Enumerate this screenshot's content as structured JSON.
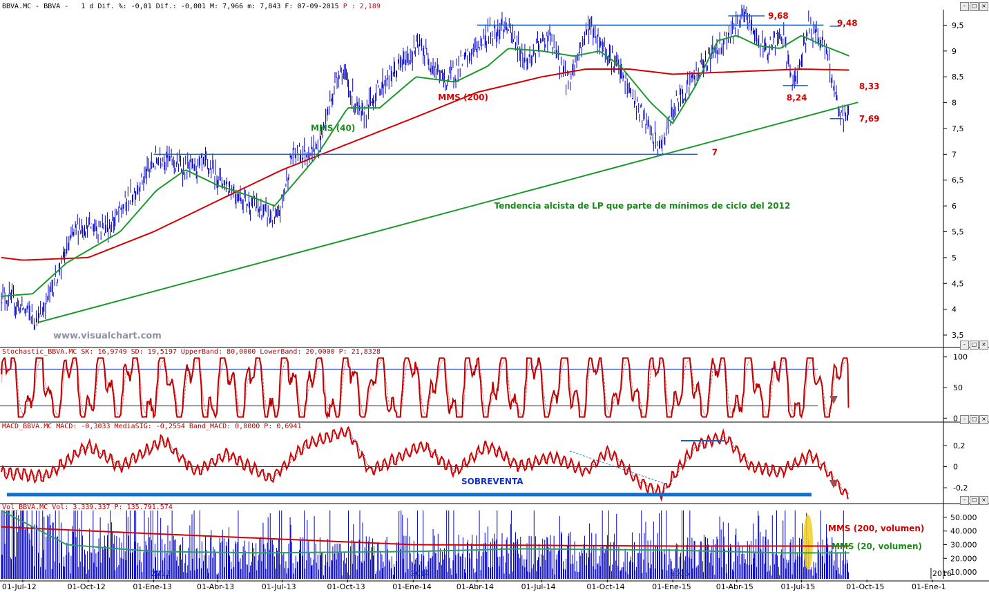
{
  "headers": {
    "price": {
      "text": "BBVA.MC - BBVA -   1 d Dif. %: -0,01 Dif.: -0,001 M: 7,966 m: 7,843 F: 07-09-2015 ",
      "p": "P : 2,189"
    },
    "stoch": {
      "text": "Stochastic_BBVA.MC SK: 16,9749 SD: 19,5197 UpperBand: 80,0000 LowerBand: 20,0000 P: 21,8328"
    },
    "macd": {
      "text": "MACD_BBVA.MC MACD: -0,3033 MediaSIG: -0,2554 Band_MACD: 0,0000 P: 0,6941"
    },
    "vol": {
      "text": "Vol_BBVA.MC Vol: 3.339.337 P: 135.791.574"
    }
  },
  "window_buttons": [
    "-",
    "□",
    "×"
  ],
  "x_axis_labels": [
    "01-Jul-12",
    "01-Oct-12",
    "01-Ene-13",
    "01-Abr-13",
    "01-Jul-13",
    "01-Oct-13",
    "01-Ene-14",
    "01-Abr-14",
    "01-Jul-14",
    "01-Oct-14",
    "01-Ene-15",
    "01-Abr-15",
    "01-Jul-15",
    "01-Oct-15",
    "01-Ene-1"
  ],
  "x_axis_x_values": [
    "2012-07-01",
    "2012-10-01",
    "2013-01-01",
    "2013-04-01",
    "2013-07-01",
    "2013-10-01",
    "2014-01-01",
    "2014-04-01",
    "2014-07-01",
    "2014-10-01",
    "2015-01-01",
    "2015-04-01",
    "2015-07-01",
    "2015-10-01",
    "2016-01-01"
  ],
  "year_marks": [
    "2013",
    "2014",
    "2015",
    "2016"
  ],
  "watermark": "www.visualchart.com",
  "colors": {
    "price": "#0000cc",
    "mms40": "#1a9a2a",
    "mms200": "#d40000",
    "hline": "#1060d0",
    "trend": "#1a9a2a",
    "annot_red": "#d40000",
    "annot_green": "#1a8a1a",
    "stoch": "#c00000",
    "macd": "#d40000",
    "vol": "#0000cc"
  },
  "chart_data": [
    {
      "type": "line",
      "panel": "price",
      "y_ticks": [
        "9,5",
        "9",
        "8,5",
        "8",
        "7,5",
        "7",
        "6,5",
        "6",
        "5,5",
        "5",
        "4,5",
        "4",
        "3,5"
      ],
      "ylim": [
        3.3,
        9.8
      ],
      "series": [
        {
          "name": "MMS (40)",
          "x": [
            "2012-06-01",
            "2012-07-15",
            "2012-09-01",
            "2012-11-15",
            "2013-01-05",
            "2013-02-15",
            "2013-04-01",
            "2013-05-15",
            "2013-06-20",
            "2013-08-15",
            "2013-10-01",
            "2013-11-15",
            "2014-01-05",
            "2014-03-01",
            "2014-04-15",
            "2014-05-15",
            "2014-07-01",
            "2014-08-15",
            "2014-09-20",
            "2014-10-20",
            "2014-12-01",
            "2015-01-01",
            "2015-02-01",
            "2015-03-05",
            "2015-04-01",
            "2015-05-01",
            "2015-06-01",
            "2015-07-01",
            "2015-08-01",
            "2015-09-07"
          ],
          "y": [
            4.25,
            4.3,
            4.9,
            5.5,
            6.3,
            6.7,
            6.4,
            6.2,
            6.0,
            6.9,
            7.9,
            7.9,
            8.5,
            8.4,
            8.7,
            9.05,
            9.0,
            8.9,
            9.0,
            8.7,
            8.0,
            7.6,
            8.3,
            9.2,
            9.3,
            9.1,
            9.05,
            9.3,
            9.1,
            8.9
          ]
        },
        {
          "name": "MMS (200)",
          "x": [
            "2012-06-01",
            "2012-07-01",
            "2012-10-01",
            "2013-01-01",
            "2013-04-01",
            "2013-07-01",
            "2013-10-01",
            "2014-01-01",
            "2014-04-01",
            "2014-07-01",
            "2014-09-01",
            "2014-11-01",
            "2015-01-01",
            "2015-04-01",
            "2015-07-01",
            "2015-09-07"
          ],
          "y": [
            5.0,
            4.95,
            5.0,
            5.5,
            6.1,
            6.7,
            7.2,
            7.7,
            8.2,
            8.5,
            8.65,
            8.65,
            8.55,
            8.6,
            8.65,
            8.63
          ]
        },
        {
          "name": "price",
          "x": [
            "2012-06-01",
            "2012-07-24",
            "2012-09-15",
            "2012-11-01",
            "2013-01-10",
            "2013-02-15",
            "2013-03-15",
            "2013-05-01",
            "2013-06-24",
            "2013-07-15",
            "2013-08-20",
            "2013-09-20",
            "2013-10-20",
            "2013-11-15",
            "2014-01-10",
            "2014-02-15",
            "2014-04-15",
            "2014-05-10",
            "2014-06-10",
            "2014-07-10",
            "2014-08-07",
            "2014-09-05",
            "2014-10-15",
            "2014-12-01",
            "2014-12-16",
            "2015-01-05",
            "2015-02-15",
            "2015-04-13",
            "2015-05-10",
            "2015-06-05",
            "2015-06-20",
            "2015-07-10",
            "2015-08-01",
            "2015-08-15",
            "2015-08-24",
            "2015-09-07"
          ],
          "y": [
            4.3,
            3.8,
            5.6,
            5.6,
            7.0,
            6.7,
            6.8,
            6.2,
            5.7,
            7.0,
            7.1,
            8.7,
            7.7,
            8.3,
            9.1,
            8.4,
            9.3,
            9.5,
            8.8,
            9.3,
            8.4,
            9.5,
            8.7,
            7.4,
            7.1,
            8.0,
            8.8,
            9.68,
            9.0,
            9.3,
            8.24,
            9.48,
            9.2,
            8.33,
            7.69,
            7.8
          ]
        }
      ],
      "levels": [
        {
          "value": 9.5,
          "label": ""
        },
        {
          "value": 7.0,
          "label": "7"
        },
        {
          "value": 9.68,
          "label": "9,68"
        },
        {
          "value": 9.48,
          "label": "9,48"
        },
        {
          "value": 8.33,
          "label": "8,33"
        },
        {
          "value": 8.24,
          "label": "8,24"
        },
        {
          "value": 7.69,
          "label": "7,69"
        }
      ],
      "trendline": {
        "x": [
          "2012-07-24",
          "2015-09-07"
        ],
        "y": [
          3.75,
          7.98
        ]
      },
      "annotations": [
        {
          "text": "MMS (40)",
          "color": "green"
        },
        {
          "text": "MMS (200)",
          "color": "red"
        },
        {
          "text": "Tendencia alcista de LP que parte de mínimos de ciclo del 2012",
          "color": "green"
        }
      ]
    },
    {
      "type": "line",
      "panel": "stochastic",
      "y_ticks": [
        "100",
        "50",
        "0"
      ],
      "ylim": [
        0,
        100
      ],
      "bands": [
        80,
        20
      ],
      "series": [
        {
          "name": "SK",
          "x": [
            "2015-09-07"
          ],
          "y": [
            16.9749
          ]
        },
        {
          "name": "SD",
          "x": [
            "2015-09-07"
          ],
          "y": [
            19.5197
          ]
        }
      ]
    },
    {
      "type": "line",
      "panel": "macd",
      "y_ticks": [
        "0,2",
        "0",
        "-0,2"
      ],
      "ylim": [
        -0.33,
        0.35
      ],
      "series": [
        {
          "name": "MACD",
          "x": [
            "2012-06-01",
            "2012-08-01",
            "2012-10-01",
            "2012-11-15",
            "2013-01-15",
            "2013-03-01",
            "2013-04-15",
            "2013-06-15",
            "2013-08-01",
            "2013-10-01",
            "2013-11-01",
            "2014-01-15",
            "2014-03-01",
            "2014-04-15",
            "2014-06-01",
            "2014-07-15",
            "2014-09-01",
            "2014-10-01",
            "2014-11-15",
            "2014-12-16",
            "2015-02-01",
            "2015-03-15",
            "2015-04-20",
            "2015-06-01",
            "2015-07-15",
            "2015-09-07"
          ],
          "y": [
            -0.05,
            -0.1,
            0.2,
            0.0,
            0.25,
            -0.05,
            0.12,
            -0.12,
            0.2,
            0.34,
            -0.05,
            0.2,
            -0.05,
            0.2,
            0.0,
            0.1,
            -0.05,
            0.15,
            -0.15,
            -0.25,
            0.2,
            0.28,
            0.0,
            -0.05,
            0.12,
            -0.3033
          ]
        },
        {
          "name": "MediaSIG",
          "x": [
            "2015-09-07"
          ],
          "y": [
            -0.2554
          ]
        }
      ],
      "annotations": [
        {
          "text": "SOBREVENTA",
          "color": "blue"
        }
      ]
    },
    {
      "type": "bar",
      "panel": "volume",
      "y_ticks": [
        "50.000",
        "40.000",
        "30.000",
        "20.000",
        "10.000"
      ],
      "ylim": [
        5000,
        55000
      ],
      "series": [
        {
          "name": "Vol",
          "x": [
            "2015-09-07"
          ],
          "y": [
            3339.337
          ]
        },
        {
          "name": "MMS (200, volumen)",
          "x": [
            "2012-06-01",
            "2013-01-01",
            "2014-01-01",
            "2015-01-01",
            "2015-09-07"
          ],
          "y": [
            43000,
            38000,
            30000,
            29000,
            29000
          ]
        },
        {
          "name": "MMS (20, volumen)",
          "x": [
            "2012-06-01",
            "2012-09-01",
            "2013-01-01",
            "2013-06-01",
            "2014-01-01",
            "2014-06-01",
            "2015-01-01",
            "2015-06-01",
            "2015-09-07"
          ],
          "y": [
            55000,
            30000,
            25000,
            24000,
            25000,
            27000,
            26000,
            24000,
            24000
          ]
        }
      ],
      "annotations": [
        {
          "text": "MMS (200, volumen)",
          "color": "red"
        },
        {
          "text": "MMS (20, volumen)",
          "color": "green"
        }
      ]
    }
  ]
}
